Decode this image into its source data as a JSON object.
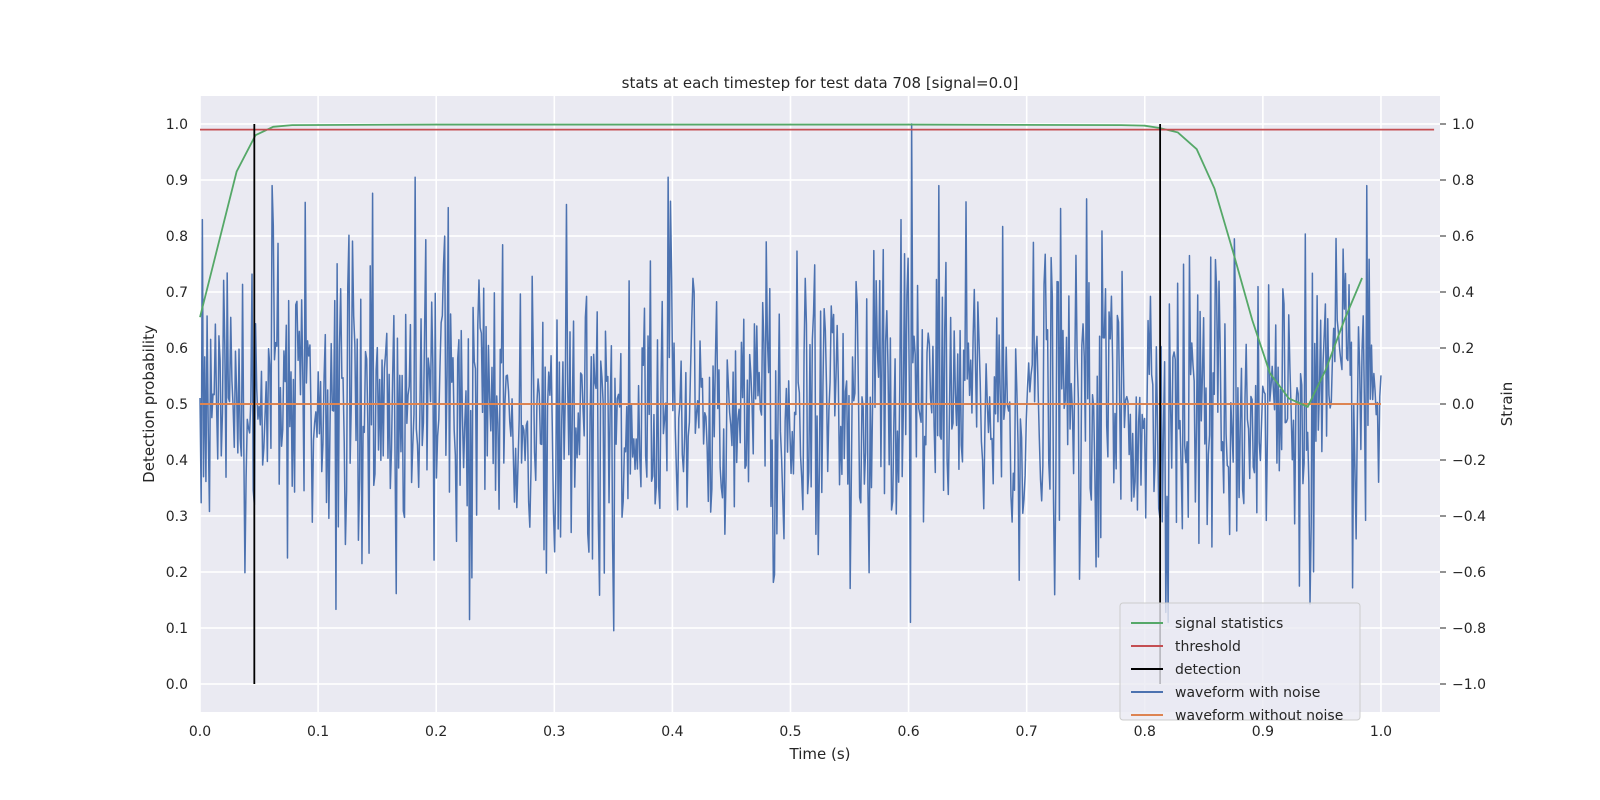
{
  "chart_data": {
    "type": "line",
    "title": "stats at each timestep for test data 708 [signal=0.0]",
    "xlabel": "Time (s)",
    "ylabel": "Detection probability",
    "ylabel_right": "Strain",
    "xlim": [
      0.0,
      1.05
    ],
    "ylim": [
      -0.05,
      1.05
    ],
    "ylim_right": [
      -1.1,
      1.1
    ],
    "xticks": [
      "0.0",
      "0.1",
      "0.2",
      "0.3",
      "0.4",
      "0.5",
      "0.6",
      "0.7",
      "0.8",
      "0.9",
      "1.0"
    ],
    "yticks": [
      "0.0",
      "0.1",
      "0.2",
      "0.3",
      "0.4",
      "0.5",
      "0.6",
      "0.7",
      "0.8",
      "0.9",
      "1.0"
    ],
    "yticks_right": [
      "−1.0",
      "−0.8",
      "−0.6",
      "−0.4",
      "−0.2",
      "0.0",
      "0.2",
      "0.4",
      "0.6",
      "0.8",
      "1.0"
    ],
    "grid": true,
    "legend_position": "lower-right",
    "colors": {
      "background": "#eaeaf2",
      "grid": "#ffffff",
      "signal_statistics": "#55a868",
      "threshold": "#c44e52",
      "detection": "#000000",
      "waveform_with_noise": "#4c72b0",
      "waveform_without_noise": "#dd8452"
    },
    "series": [
      {
        "name": "signal statistics",
        "key": "signal_statistics",
        "axis": "left",
        "x": [
          0.0,
          0.031,
          0.047,
          0.062,
          0.078,
          0.2,
          0.4,
          0.6,
          0.78,
          0.8,
          0.812,
          0.828,
          0.844,
          0.859,
          0.875,
          0.891,
          0.906,
          0.922,
          0.938,
          0.953,
          0.969,
          0.984
        ],
        "y": [
          0.655,
          0.915,
          0.98,
          0.995,
          0.998,
          0.999,
          0.999,
          0.999,
          0.998,
          0.997,
          0.993,
          0.985,
          0.955,
          0.885,
          0.77,
          0.65,
          0.555,
          0.51,
          0.495,
          0.56,
          0.65,
          0.725
        ]
      },
      {
        "name": "threshold",
        "key": "threshold",
        "axis": "left",
        "x": [
          0.0,
          1.045
        ],
        "y": [
          0.99,
          0.99
        ]
      },
      {
        "name": "detection",
        "key": "detection",
        "axis": "left",
        "x_positions": [
          0.046,
          0.813
        ],
        "y": [
          0.0,
          1.0
        ]
      },
      {
        "name": "waveform with noise",
        "key": "waveform_with_noise",
        "axis": "right",
        "x_range": [
          0.0,
          1.0
        ],
        "n_points": 1000,
        "amplitude_std": 0.28,
        "extrema": [
          {
            "x": 0.602,
            "y": 1.0
          },
          {
            "x": 0.602,
            "y": -0.78
          },
          {
            "x": 0.35,
            "y": -0.81
          },
          {
            "x": 0.228,
            "y": -0.77
          },
          {
            "x": 0.182,
            "y": 0.81
          },
          {
            "x": 0.395,
            "y": 0.81
          },
          {
            "x": 0.088,
            "y": 0.72
          }
        ]
      },
      {
        "name": "waveform without noise",
        "key": "waveform_without_noise",
        "axis": "right",
        "x": [
          0.0,
          1.0
        ],
        "y": [
          0.0,
          0.0
        ]
      }
    ],
    "legend": [
      {
        "label": "signal statistics",
        "key": "signal_statistics"
      },
      {
        "label": "threshold",
        "key": "threshold"
      },
      {
        "label": "detection",
        "key": "detection"
      },
      {
        "label": "waveform with noise",
        "key": "waveform_with_noise"
      },
      {
        "label": "waveform without noise",
        "key": "waveform_without_noise"
      }
    ]
  }
}
